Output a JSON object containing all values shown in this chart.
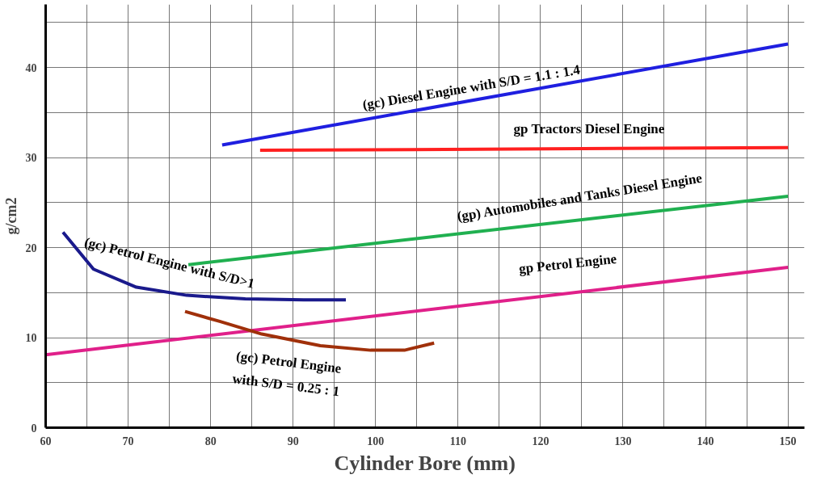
{
  "chart_data": {
    "type": "line",
    "xlabel": "Cylinder Bore (mm)",
    "ylabel": "g/cm2",
    "xlim": [
      60,
      152
    ],
    "ylim": [
      0,
      47
    ],
    "xticks": [
      60,
      {
        "value": 65,
        "label": null
      },
      70,
      {
        "value": 75,
        "label": null
      },
      80,
      {
        "value": 85,
        "label": null
      },
      90,
      {
        "value": 95,
        "label": null
      },
      100,
      {
        "value": 105,
        "label": null
      },
      110,
      {
        "value": 115,
        "label": null
      },
      120,
      {
        "value": 125,
        "label": null
      },
      130,
      {
        "value": 135,
        "label": null
      },
      140,
      {
        "value": 145,
        "label": null
      },
      150
    ],
    "yticks": [
      0,
      {
        "value": 5,
        "label": null
      },
      10,
      {
        "value": 15,
        "label": null
      },
      20,
      {
        "value": 25,
        "label": null
      },
      30,
      {
        "value": 35,
        "label": null
      },
      40,
      {
        "value": 45,
        "label": null
      }
    ],
    "grid": true,
    "series": [
      {
        "name": "(gc) Diesel Engine with S/D = 1.1 : 1.4",
        "color": "#1f1fe0",
        "x": [
          81.4,
          150
        ],
        "values": [
          31.4,
          42.6
        ]
      },
      {
        "name": "gp Tractors Diesel Engine",
        "color": "#ff2020",
        "x": [
          86,
          150
        ],
        "values": [
          30.8,
          31.1
        ]
      },
      {
        "name": "(gp) Automobiles and Tanks Diesel Engine",
        "color": "#20b050",
        "x": [
          77.3,
          150
        ],
        "values": [
          18.1,
          25.7
        ]
      },
      {
        "name": "gp Petrol Engine",
        "color": "#e0208a",
        "x": [
          60,
          150
        ],
        "values": [
          8.1,
          17.8
        ]
      },
      {
        "name": "(gc) Petrol Engine with S/D>1",
        "color": "#1a1a8c",
        "x": [
          62.1,
          65.8,
          71,
          77.1,
          84.2,
          91.3,
          96.4
        ],
        "values": [
          21.7,
          17.6,
          15.6,
          14.7,
          14.3,
          14.2,
          14.2
        ]
      },
      {
        "name": "(gc) Petrol Engine\nwith S/D = 0.25 : 1",
        "color": "#a0300a",
        "x": [
          76.9,
          81.1,
          86.2,
          93.3,
          99.4,
          103.5,
          107.1
        ],
        "values": [
          12.9,
          11.8,
          10.4,
          9.1,
          8.6,
          8.6,
          9.4
        ]
      }
    ]
  }
}
